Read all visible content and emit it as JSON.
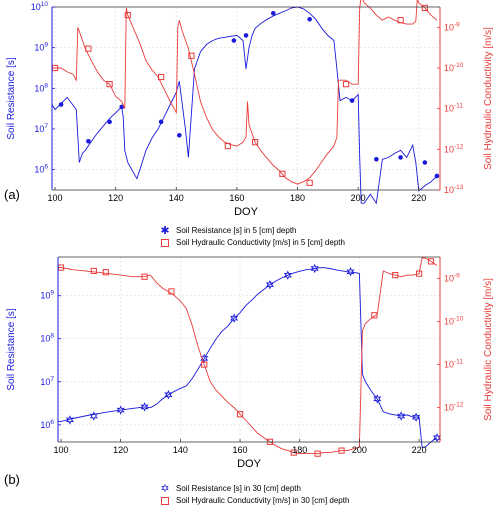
{
  "chart_data": [
    {
      "type": "line",
      "panel_label": "(a)",
      "xlabel": "DOY",
      "ylabel_left": "Soil Resistance [s]",
      "ylabel_right": "Soil Hydraulic Conductivity [m/s]",
      "xlim": [
        99,
        227
      ],
      "xticks": [
        100,
        120,
        140,
        160,
        180,
        200,
        220
      ],
      "ylim_left_log10": [
        5.5,
        10
      ],
      "ylim_right_log10": [
        -13,
        -8.5
      ],
      "left_tick_labels": [
        "10^6",
        "10^7",
        "10^8",
        "10^9",
        "10^10"
      ],
      "right_tick_labels": [
        "10^-13",
        "10^-12",
        "10^-11",
        "10^-10",
        "10^-9"
      ],
      "grid": true,
      "legend_position": "below",
      "series": [
        {
          "name": "Soil Resistance [s] in 5 [cm] depth",
          "axis": "left",
          "color": "#1a1adc",
          "marker": "asterisk",
          "x": [
            99,
            100,
            104,
            107,
            108,
            109,
            110,
            112,
            114,
            116,
            118,
            120,
            122,
            122.5,
            123,
            124,
            127,
            128,
            130,
            132,
            134,
            136,
            138,
            140,
            141,
            142,
            143,
            144,
            146,
            148,
            150,
            152,
            154,
            156,
            158,
            160,
            162,
            163,
            164,
            165,
            166,
            168,
            170,
            172,
            174,
            176,
            178,
            180,
            182,
            184,
            186,
            188,
            190,
            192,
            193,
            194,
            196,
            198,
            200,
            200.5,
            201,
            202,
            204,
            206,
            208,
            210,
            212,
            214,
            216,
            218,
            219,
            220,
            222,
            224,
            226
          ],
          "y": [
            40000000.0,
            30000000.0,
            60000000.0,
            30000000.0,
            1500000.0,
            2500000.0,
            3000000.0,
            5000000.0,
            8000000.0,
            12000000.0,
            18000000.0,
            25000000.0,
            35000000.0,
            20000000.0,
            3000000.0,
            1500000.0,
            600000.0,
            1000000.0,
            3000000.0,
            6000000.0,
            10000000.0,
            20000000.0,
            40000000.0,
            80000000.0,
            150000000.0,
            40000000.0,
            10000000.0,
            2000000.0,
            300000000.0,
            800000000.0,
            1200000000.0,
            1500000000.0,
            1700000000.0,
            1800000000.0,
            1900000000.0,
            2000000000.0,
            1500000000.0,
            300000000.0,
            1000000000.0,
            2000000000.0,
            3000000000.0,
            4000000000.0,
            5000000000.0,
            6000000000.0,
            7000000000.0,
            8000000000.0,
            9500000000.0,
            10000000000.0,
            9000000000.0,
            7000000000.0,
            5000000000.0,
            3000000000.0,
            2000000000.0,
            1500000000.0,
            300000000.0,
            50000000.0,
            60000000.0,
            50000000.0,
            70000000.0,
            2000000.0,
            150000.0,
            150000.0,
            250000.0,
            150000.0,
            1800000.0,
            2000000.0,
            2500000.0,
            3000000.0,
            2000000.0,
            4000000.0,
            1500000.0,
            300000.0,
            400000.0,
            500000.0,
            700000.0
          ],
          "marker_x": [
            102,
            111,
            118,
            122,
            135,
            141,
            159,
            163,
            172,
            184,
            198,
            206,
            214,
            222,
            226
          ],
          "marker_y": [
            40000000.0,
            5000000.0,
            15000000.0,
            35000000.0,
            15000000.0,
            7000000.0,
            1500000000.0,
            2000000000.0,
            7000000000.0,
            5000000000.0,
            50000000.0,
            1800000.0,
            2000000.0,
            1500000.0,
            700000.0
          ]
        },
        {
          "name": "Soil Hydraulic Conductivity [m/s] in 5 [cm] depth",
          "axis": "right",
          "color": "#e83b3b",
          "marker": "square",
          "x": [
            99,
            100,
            102,
            104,
            106,
            107,
            107.5,
            108,
            110,
            112,
            114,
            116,
            118,
            120,
            122,
            123,
            123.5,
            124,
            126,
            128,
            130,
            132,
            134,
            136,
            138,
            140,
            140.5,
            141,
            142,
            144,
            146,
            148,
            150,
            152,
            154,
            156,
            158,
            160,
            162,
            163,
            163.5,
            164,
            166,
            168,
            170,
            172,
            174,
            176,
            178,
            180,
            182,
            184,
            186,
            188,
            190,
            192,
            193,
            193.5,
            194,
            196,
            198,
            200,
            200.5,
            201,
            202,
            204,
            206,
            208,
            210,
            212,
            214,
            216,
            218,
            219,
            219.5,
            220,
            222,
            224,
            226
          ],
          "y": [
            1e-10,
            1e-10,
            1e-10,
            8e-11,
            7e-11,
            5e-11,
            1e-09,
            8e-10,
            3e-10,
            1.5e-10,
            8e-11,
            5e-11,
            4e-11,
            2e-11,
            1.5e-11,
            1e-11,
            3e-09,
            2e-09,
            9e-10,
            4e-10,
            1.5e-10,
            9e-11,
            6e-11,
            3e-11,
            1.5e-11,
            8e-12,
            1e-09,
            1.5e-09,
            8e-10,
            3e-10,
            7e-11,
            1.5e-11,
            6e-12,
            3e-12,
            2e-12,
            1.5e-12,
            1.3e-12,
            1.2e-12,
            1.5e-12,
            2e-12,
            1.5e-11,
            4e-12,
            1.5e-12,
            9e-13,
            6e-13,
            4e-13,
            3e-13,
            2e-13,
            1.6e-13,
            1.4e-13,
            1.6e-13,
            2e-13,
            3e-13,
            5e-13,
            8e-13,
            1.2e-12,
            2e-12,
            5e-11,
            5e-11,
            5e-11,
            4e-11,
            4e-11,
            3e-09,
            6e-09,
            4e-09,
            3e-09,
            2e-09,
            1.5e-09,
            1.8e-09,
            1.5e-09,
            1.3e-09,
            1.2e-09,
            1.2e-09,
            1.4e-09,
            5e-09,
            4e-09,
            3e-09,
            2e-09,
            1.5e-09
          ],
          "marker_x": [
            100,
            111,
            118,
            124,
            135,
            145,
            157,
            166,
            175,
            184,
            196,
            214,
            222
          ],
          "marker_y": [
            1e-10,
            3e-10,
            4e-11,
            2e-09,
            6e-11,
            2e-10,
            1.2e-12,
            1.5e-12,
            2.5e-13,
            1.5e-13,
            4e-11,
            1.5e-09,
            3e-09
          ]
        }
      ]
    },
    {
      "type": "line",
      "panel_label": "(b)",
      "xlabel": "DOY",
      "ylabel_left": "Soil Resistance [s]",
      "ylabel_right": "Soil Hydraulic Conductivity [m/s]",
      "xlim": [
        99,
        227
      ],
      "xticks": [
        100,
        120,
        140,
        160,
        180,
        200,
        220
      ],
      "ylim_left_log10": [
        5.6,
        9.9
      ],
      "ylim_right_log10": [
        -12.8,
        -8.5
      ],
      "left_tick_labels": [
        "10^6",
        "10^7",
        "10^8",
        "10^9"
      ],
      "right_tick_labels": [
        "10^-12",
        "10^-11",
        "10^-10",
        "10^-9"
      ],
      "grid": true,
      "legend_position": "below",
      "series": [
        {
          "name": "Soil Resistance [s] in 30 [cm] depth",
          "axis": "left",
          "color": "#1a1adc",
          "marker": "hexagram",
          "x": [
            99,
            100,
            104,
            108,
            112,
            116,
            120,
            124,
            128,
            130,
            132,
            134,
            136,
            138,
            140,
            142,
            144,
            146,
            148,
            150,
            152,
            154,
            156,
            158,
            160,
            162,
            164,
            166,
            168,
            170,
            172,
            174,
            176,
            178,
            180,
            182,
            184,
            186,
            188,
            190,
            192,
            194,
            196,
            198,
            200,
            201,
            202,
            204,
            206,
            208,
            210,
            212,
            214,
            216,
            218,
            220,
            221,
            222,
            224,
            226
          ],
          "y": [
            1200000.0,
            1200000.0,
            1400000.0,
            1600000.0,
            1800000.0,
            2000000.0,
            2200000.0,
            2400000.0,
            2600000.0,
            2500000.0,
            3000000.0,
            4000000.0,
            5000000.0,
            6000000.0,
            7000000.0,
            8000000.0,
            12000000.0,
            20000000.0,
            35000000.0,
            60000000.0,
            100000000.0,
            150000000.0,
            200000000.0,
            300000000.0,
            400000000.0,
            600000000.0,
            800000000.0,
            1100000000.0,
            1400000000.0,
            1800000000.0,
            2200000000.0,
            2600000000.0,
            3000000000.0,
            3400000000.0,
            3700000000.0,
            4000000000.0,
            4200000000.0,
            4400000000.0,
            4500000000.0,
            4300000000.0,
            4000000000.0,
            3800000000.0,
            3600000000.0,
            3500000000.0,
            3300000000.0,
            15000000.0,
            10000000.0,
            6000000.0,
            4000000.0,
            2000000.0,
            1800000.0,
            1700000.0,
            1600000.0,
            1700000.0,
            1500000.0,
            1500000.0,
            300000.0,
            300000.0,
            400000.0,
            500000.0
          ],
          "marker_x": [
            103,
            111,
            120,
            128,
            136,
            148,
            158,
            170,
            176,
            185,
            197,
            206,
            214,
            219,
            226
          ],
          "marker_y": [
            1300000.0,
            1600000.0,
            2200000.0,
            2600000.0,
            5000000.0,
            35000000.0,
            300000000.0,
            1800000000.0,
            3000000000.0,
            4300000000.0,
            3600000000.0,
            4000000.0,
            1600000.0,
            1500000.0,
            500000.0
          ]
        },
        {
          "name": "Soil Hydraulic Conductivity [m/s] in 30 [cm] depth",
          "axis": "right",
          "color": "#e83b3b",
          "marker": "square",
          "x": [
            99,
            100,
            104,
            108,
            112,
            116,
            120,
            124,
            128,
            130,
            132,
            134,
            136,
            138,
            140,
            142,
            144,
            146,
            148,
            150,
            152,
            154,
            156,
            158,
            160,
            162,
            164,
            166,
            168,
            170,
            172,
            174,
            176,
            178,
            180,
            182,
            184,
            186,
            188,
            190,
            192,
            194,
            196,
            198,
            200,
            201,
            202,
            204,
            206,
            208,
            210,
            212,
            214,
            216,
            218,
            220,
            221,
            222,
            224,
            226
          ],
          "y": [
            1.8e-09,
            1.8e-09,
            1.6e-09,
            1.5e-09,
            1.4e-09,
            1.3e-09,
            1.2e-09,
            1.1e-09,
            1.1e-09,
            1.2e-09,
            8e-10,
            6e-10,
            5e-10,
            4e-10,
            3e-10,
            2e-10,
            8e-11,
            2.5e-11,
            1e-11,
            4e-12,
            2.5e-12,
            1.8e-12,
            1.3e-12,
            1e-12,
            7e-13,
            5e-13,
            3.5e-13,
            2.5e-13,
            2e-13,
            1.6e-13,
            1.3e-13,
            1.1e-13,
            1e-13,
            9e-14,
            8.5e-14,
            8.5e-14,
            8.5e-14,
            8.5e-14,
            9e-14,
            9e-14,
            9.5e-14,
            1e-13,
            1e-13,
            1.1e-13,
            1.2e-13,
            6e-11,
            9e-11,
            1.2e-10,
            1.5e-10,
            1.5e-09,
            1.3e-09,
            1.2e-09,
            1.1e-09,
            1.2e-09,
            1.2e-09,
            1.3e-09,
            3e-09,
            3e-09,
            2.5e-09,
            2e-09
          ],
          "marker_x": [
            100,
            111,
            115,
            128,
            137,
            148,
            160,
            170,
            178,
            186,
            194,
            205,
            212,
            220,
            224
          ],
          "marker_y": [
            1.8e-09,
            1.5e-09,
            1.4e-09,
            1.1e-09,
            5e-10,
            1e-11,
            7e-13,
            1.6e-13,
            9e-14,
            8.5e-14,
            1e-13,
            1.4e-10,
            1.2e-09,
            1.3e-09,
            2.5e-09
          ]
        }
      ]
    }
  ]
}
